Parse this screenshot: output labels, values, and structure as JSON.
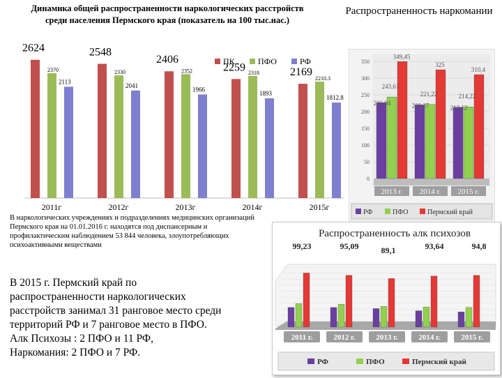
{
  "colors": {
    "pk": "#c0504d",
    "pfo": "#9bbb59",
    "rf": "#7f7fd0",
    "rf_dark": "#6a3fa0",
    "pfo_light": "#92d050",
    "pk_red": "#e53935"
  },
  "chart_data": [
    {
      "type": "bar",
      "title": "Динамика общей распространенности наркологических расстройств среди населения Пермского края (показатель на 100 тыс.нас.)",
      "categories": [
        "2011г",
        "2012г",
        "2013г",
        "2014г",
        "2015г"
      ],
      "legend": [
        "ПК",
        "ПФО",
        "РФ"
      ],
      "legend_position": "top-right",
      "series": [
        {
          "name": "ПК",
          "values": [
            2624,
            2548,
            2406,
            2259,
            2169
          ]
        },
        {
          "name": "ПФО",
          "values": [
            2370,
            2330,
            2352,
            2318,
            2210.3
          ]
        },
        {
          "name": "РФ",
          "values": [
            2113,
            2041,
            1966,
            1893,
            1812.8
          ]
        }
      ],
      "labels": {
        "ПК": [
          "2624",
          "2548",
          "2406",
          "2259",
          "2169"
        ],
        "ПФО": [
          "2370",
          "2330",
          "2352",
          "2318",
          "2210.3"
        ],
        "РФ": [
          "2113",
          "2041",
          "1966",
          "1893",
          "1812.8"
        ]
      },
      "ylim": [
        0,
        2700
      ]
    },
    {
      "type": "bar",
      "title": "Распространенность наркомании",
      "categories": [
        "2013 г.",
        "2014 г.",
        "2015 г."
      ],
      "legend": [
        "РФ",
        "ПФО",
        "Пермский край"
      ],
      "legend_position": "bottom",
      "series": [
        {
          "name": "РФ",
          "values": [
            226.94,
            220.27,
            213.12
          ]
        },
        {
          "name": "ПФО",
          "values": [
            243.61,
            221.22,
            214.22
          ]
        },
        {
          "name": "Пермский край",
          "values": [
            349.45,
            325,
            310.4
          ]
        }
      ],
      "labels": {
        "РФ": [
          "226,94",
          "220,27",
          "213,12"
        ],
        "ПФО": [
          "243,61",
          "221,22",
          "214,22"
        ],
        "Пермский край": [
          "349,45",
          "325",
          "310,4"
        ]
      },
      "yticks": [
        0,
        50,
        100,
        150,
        200,
        250,
        300,
        350
      ],
      "ylim": [
        0,
        350
      ]
    },
    {
      "type": "bar",
      "title": "Распространенность алк психозов",
      "categories": [
        "2011 г.",
        "2012 г.",
        "2013 г.",
        "2014 г.",
        "2015 г."
      ],
      "legend": [
        "РФ",
        "ПФО",
        "Пермский край"
      ],
      "legend_position": "bottom",
      "series": [
        {
          "name": "РФ",
          "values": [
            36,
            36,
            34,
            30,
            28
          ]
        },
        {
          "name": "ПФО",
          "values": [
            43,
            42,
            38,
            37,
            36
          ]
        },
        {
          "name": "Пермский край",
          "values": [
            99.23,
            95.09,
            89.1,
            93.64,
            94.8
          ]
        }
      ],
      "top_labels": [
        "99,23",
        "95,09",
        "89,1",
        "93,64",
        "94,8"
      ],
      "ylim": [
        0,
        110
      ]
    }
  ],
  "note": "В наркологических учреждениях и подразделениях медицинских организаций Пермского края на 01.01.2016 г. находятся под диспансерным и профилактическим наблюдением 53 844 человека, злоупотребляющих психоактивными веществами",
  "summary": [
    "В 2015 г. Пермский край по",
    "распространенности наркологических",
    "расстройств занимал 31 ранговое место среди",
    "территорий РФ и 7 ранговое место в ПФО.",
    "Алк Психозы : 2 ПФО и 11 РФ,",
    "Наркомания: 2 ПФО и 7 РФ."
  ]
}
